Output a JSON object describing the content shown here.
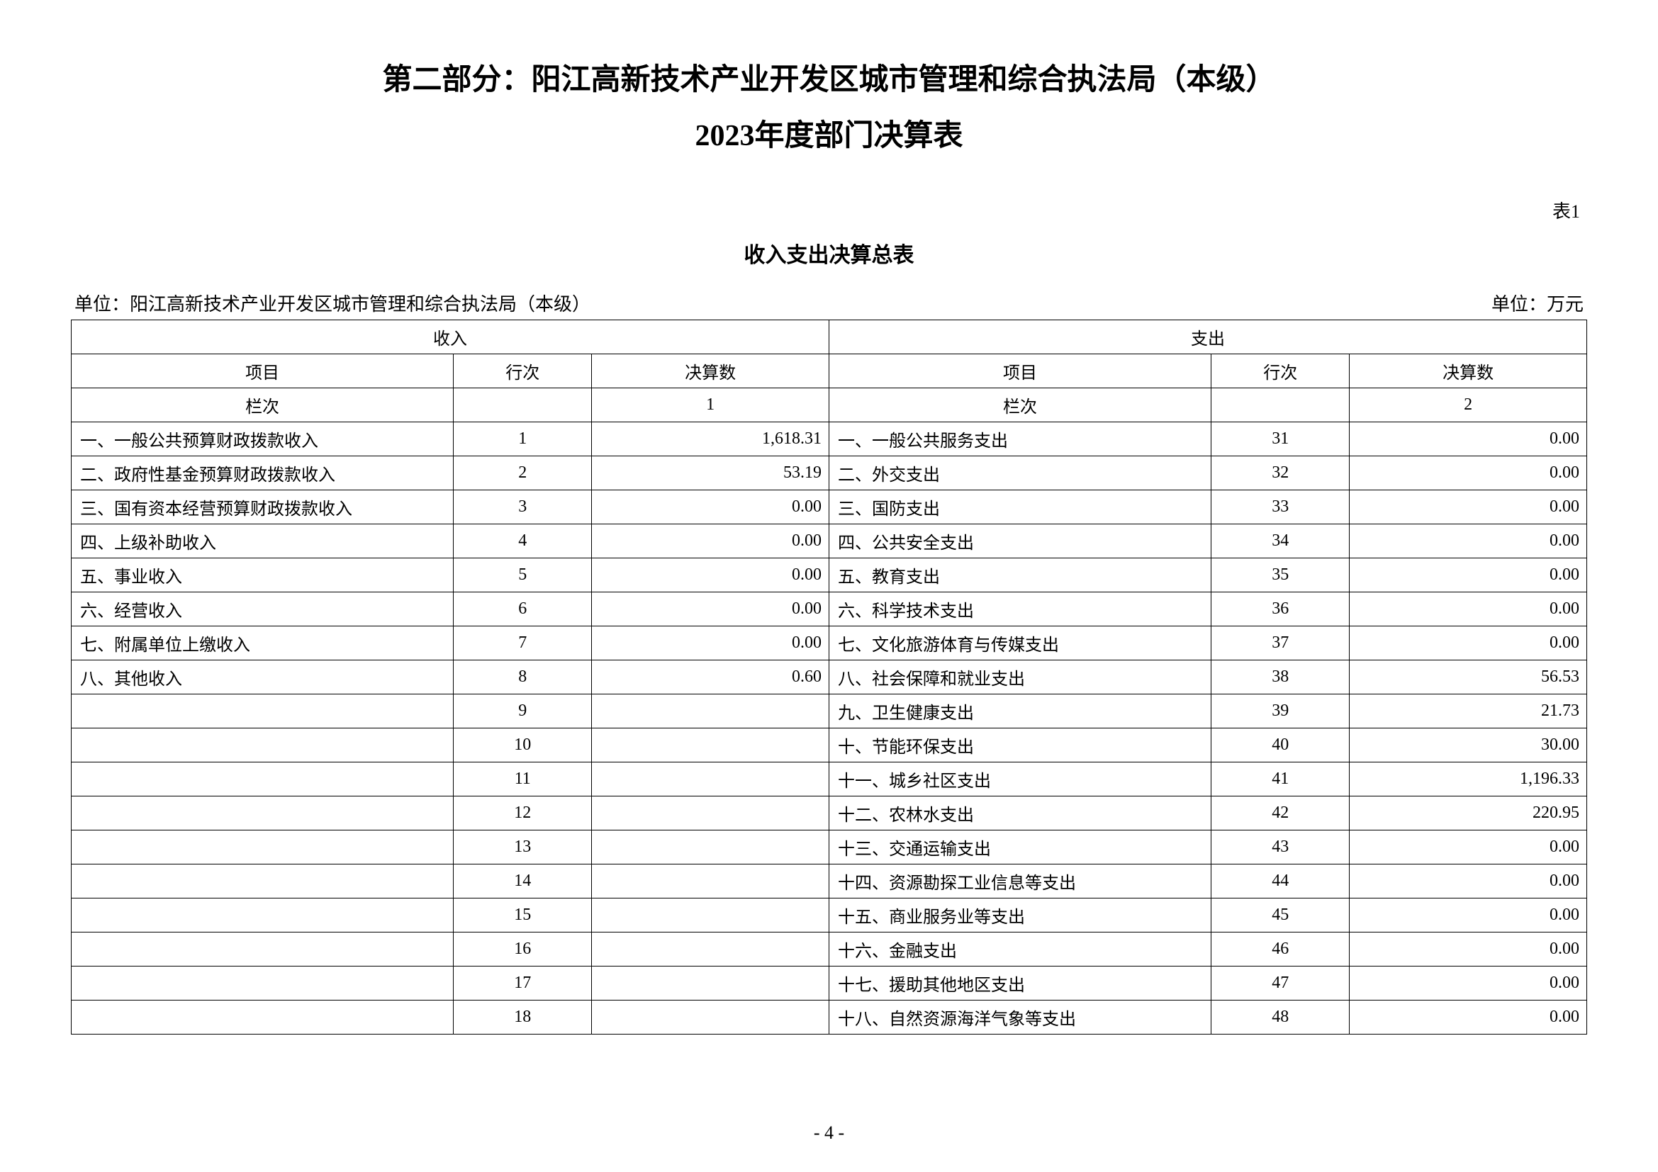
{
  "title": "第二部分：阳江高新技术产业开发区城市管理和综合执法局（本级）",
  "subtitle": "2023年度部门决算表",
  "table_number": "表1",
  "table_title": "收入支出决算总表",
  "unit_left": "单位：阳江高新技术产业开发区城市管理和综合执法局（本级）",
  "unit_right": "单位：万元",
  "header": {
    "income": "收入",
    "expense": "支出",
    "item": "项目",
    "row": "行次",
    "amount": "决算数",
    "col_label": "栏次",
    "col_1": "1",
    "col_2": "2"
  },
  "rows": [
    {
      "in_item": "一、一般公共预算财政拨款收入",
      "in_row": "1",
      "in_amt": "1,618.31",
      "ex_item": "一、一般公共服务支出",
      "ex_row": "31",
      "ex_amt": "0.00"
    },
    {
      "in_item": "二、政府性基金预算财政拨款收入",
      "in_row": "2",
      "in_amt": "53.19",
      "ex_item": "二、外交支出",
      "ex_row": "32",
      "ex_amt": "0.00"
    },
    {
      "in_item": "三、国有资本经营预算财政拨款收入",
      "in_row": "3",
      "in_amt": "0.00",
      "ex_item": "三、国防支出",
      "ex_row": "33",
      "ex_amt": "0.00"
    },
    {
      "in_item": "四、上级补助收入",
      "in_row": "4",
      "in_amt": "0.00",
      "ex_item": "四、公共安全支出",
      "ex_row": "34",
      "ex_amt": "0.00"
    },
    {
      "in_item": "五、事业收入",
      "in_row": "5",
      "in_amt": "0.00",
      "ex_item": "五、教育支出",
      "ex_row": "35",
      "ex_amt": "0.00"
    },
    {
      "in_item": "六、经营收入",
      "in_row": "6",
      "in_amt": "0.00",
      "ex_item": "六、科学技术支出",
      "ex_row": "36",
      "ex_amt": "0.00"
    },
    {
      "in_item": "七、附属单位上缴收入",
      "in_row": "7",
      "in_amt": "0.00",
      "ex_item": "七、文化旅游体育与传媒支出",
      "ex_row": "37",
      "ex_amt": "0.00"
    },
    {
      "in_item": "八、其他收入",
      "in_row": "8",
      "in_amt": "0.60",
      "ex_item": "八、社会保障和就业支出",
      "ex_row": "38",
      "ex_amt": "56.53"
    },
    {
      "in_item": "",
      "in_row": "9",
      "in_amt": "",
      "ex_item": "九、卫生健康支出",
      "ex_row": "39",
      "ex_amt": "21.73"
    },
    {
      "in_item": "",
      "in_row": "10",
      "in_amt": "",
      "ex_item": "十、节能环保支出",
      "ex_row": "40",
      "ex_amt": "30.00"
    },
    {
      "in_item": "",
      "in_row": "11",
      "in_amt": "",
      "ex_item": "十一、城乡社区支出",
      "ex_row": "41",
      "ex_amt": "1,196.33"
    },
    {
      "in_item": "",
      "in_row": "12",
      "in_amt": "",
      "ex_item": "十二、农林水支出",
      "ex_row": "42",
      "ex_amt": "220.95"
    },
    {
      "in_item": "",
      "in_row": "13",
      "in_amt": "",
      "ex_item": "十三、交通运输支出",
      "ex_row": "43",
      "ex_amt": "0.00"
    },
    {
      "in_item": "",
      "in_row": "14",
      "in_amt": "",
      "ex_item": "十四、资源勘探工业信息等支出",
      "ex_row": "44",
      "ex_amt": "0.00"
    },
    {
      "in_item": "",
      "in_row": "15",
      "in_amt": "",
      "ex_item": "十五、商业服务业等支出",
      "ex_row": "45",
      "ex_amt": "0.00"
    },
    {
      "in_item": "",
      "in_row": "16",
      "in_amt": "",
      "ex_item": "十六、金融支出",
      "ex_row": "46",
      "ex_amt": "0.00"
    },
    {
      "in_item": "",
      "in_row": "17",
      "in_amt": "",
      "ex_item": "十七、援助其他地区支出",
      "ex_row": "47",
      "ex_amt": "0.00"
    },
    {
      "in_item": "",
      "in_row": "18",
      "in_amt": "",
      "ex_item": "十八、自然资源海洋气象等支出",
      "ex_row": "48",
      "ex_amt": "0.00"
    }
  ],
  "page_number": "- 4 -"
}
